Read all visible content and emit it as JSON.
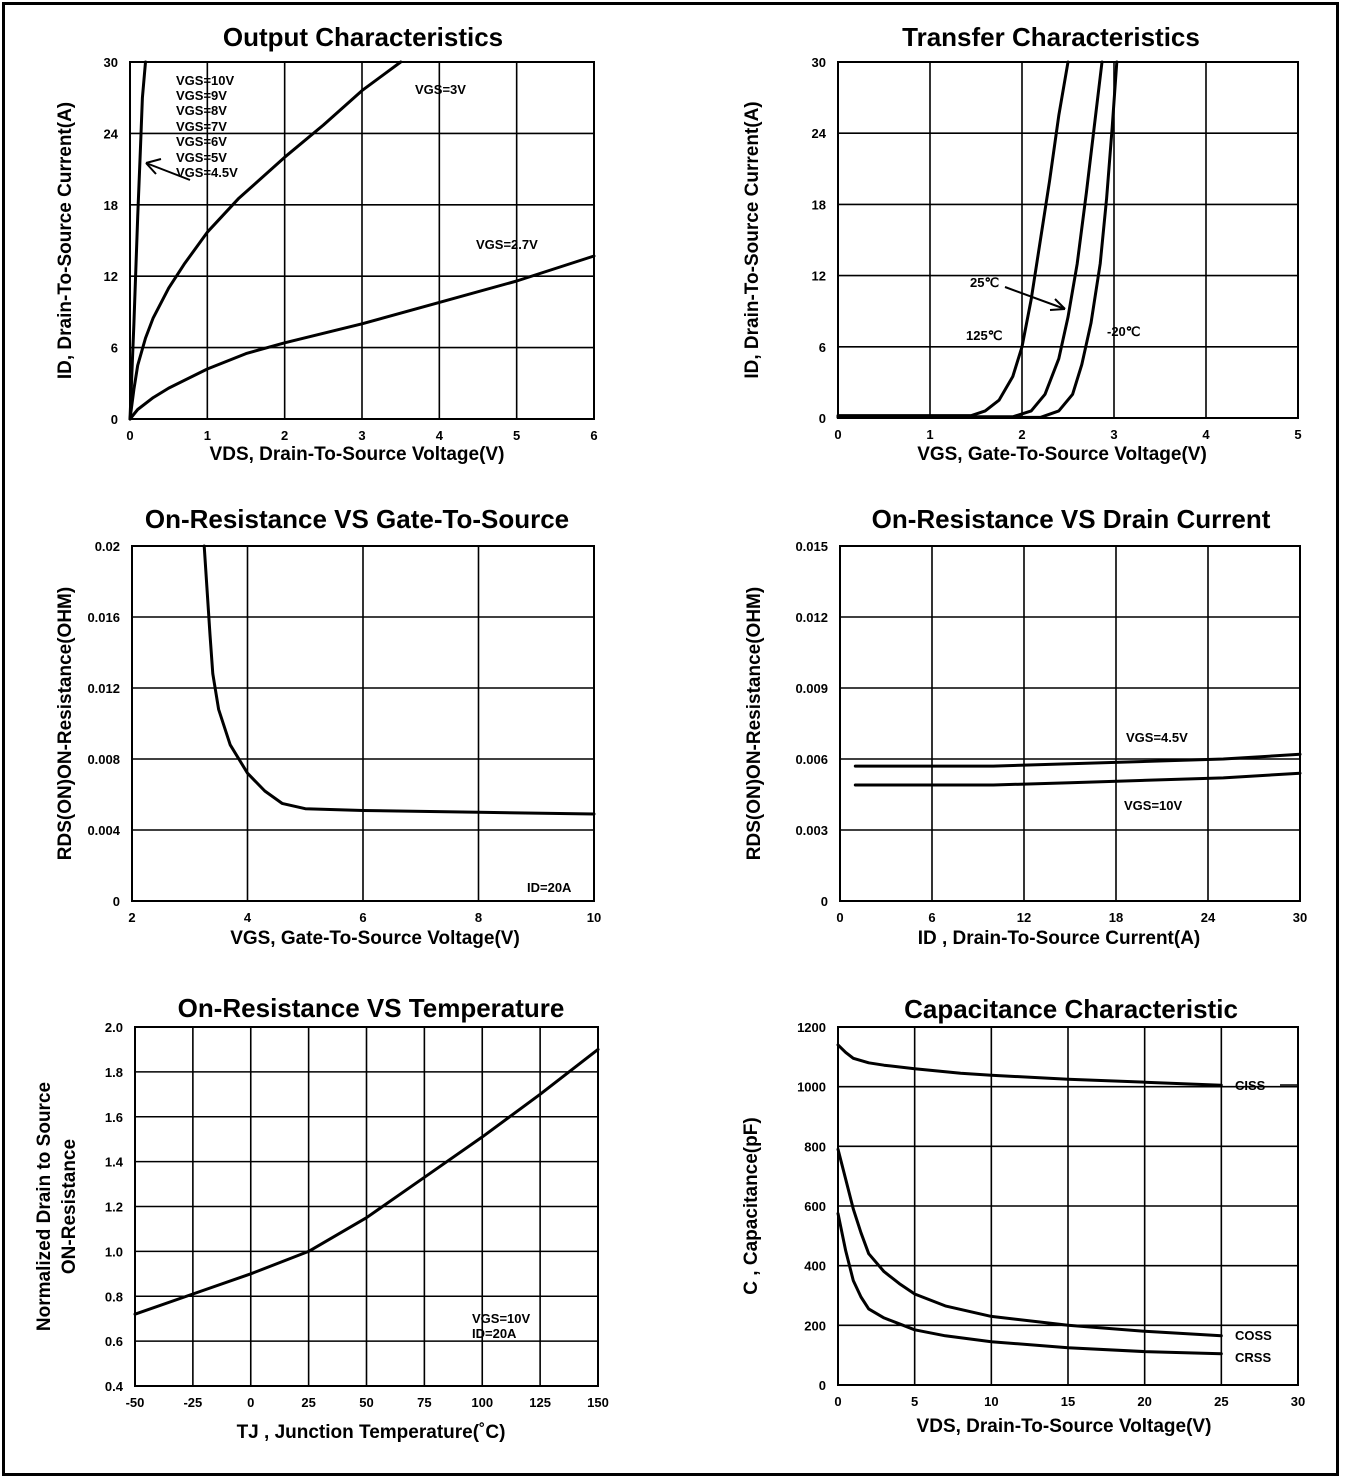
{
  "chart_data": [
    {
      "type": "line",
      "title": "Output Characteristics",
      "xlabel": "VDS, Drain-To-Source Voltage(V)",
      "ylabel": "ID, Drain-To-Source Current(A)",
      "xlim": [
        0,
        6
      ],
      "ylim": [
        0,
        30
      ],
      "xticks": [
        "0",
        "1",
        "2",
        "3",
        "4",
        "5",
        "6"
      ],
      "yticks": [
        "0",
        "6",
        "12",
        "18",
        "24",
        "30"
      ],
      "grid": true,
      "series": [
        {
          "name": "VGS=10V...4.5V",
          "x": [
            0,
            0.05,
            0.1,
            0.13,
            0.16,
            0.2
          ],
          "y": [
            0,
            8,
            17,
            22,
            27,
            30
          ]
        },
        {
          "name": "VGS=3V",
          "x": [
            0,
            0.05,
            0.1,
            0.2,
            0.3,
            0.5,
            0.7,
            1.0,
            1.4,
            2.0,
            2.5,
            3.0,
            3.5
          ],
          "y": [
            0,
            2.5,
            4.5,
            6.8,
            8.5,
            11,
            13,
            15.7,
            18.5,
            22,
            24.7,
            27.6,
            30
          ]
        },
        {
          "name": "VGS=2.7V",
          "x": [
            0,
            0.1,
            0.3,
            0.5,
            1.0,
            1.5,
            2.0,
            3.0,
            4.0,
            5.0,
            6.0
          ],
          "y": [
            0,
            0.8,
            1.8,
            2.6,
            4.2,
            5.5,
            6.4,
            8.0,
            9.8,
            11.6,
            13.7
          ]
        }
      ],
      "annotations": [
        "VGS=10V",
        "VGS=9V",
        "VGS=8V",
        "VGS=7V",
        "VGS=6V",
        "VGS=5V",
        "VGS=4.5V",
        "VGS=3V",
        "VGS=2.7V"
      ]
    },
    {
      "type": "line",
      "title": "Transfer Characteristics",
      "xlabel": "VGS, Gate-To-Source Voltage(V)",
      "ylabel": "ID, Drain-To-Source Current(A)",
      "xlim": [
        0,
        5
      ],
      "ylim": [
        0,
        30
      ],
      "xticks": [
        "0",
        "1",
        "2",
        "3",
        "4",
        "5"
      ],
      "yticks": [
        "0",
        "6",
        "12",
        "18",
        "24",
        "30"
      ],
      "grid": true,
      "series": [
        {
          "name": "125℃",
          "x": [
            0,
            1.45,
            1.6,
            1.75,
            1.9,
            2.0,
            2.1,
            2.2,
            2.3,
            2.4,
            2.5
          ],
          "y": [
            0.2,
            0.2,
            0.6,
            1.5,
            3.5,
            6.0,
            10.0,
            15.0,
            20.0,
            25.5,
            30
          ]
        },
        {
          "name": "25℃",
          "x": [
            0,
            1.9,
            2.1,
            2.25,
            2.4,
            2.5,
            2.6,
            2.7,
            2.8,
            2.87
          ],
          "y": [
            0.1,
            0.1,
            0.6,
            2.0,
            5.0,
            8.5,
            13.0,
            19.0,
            25.5,
            30
          ]
        },
        {
          "name": "-20℃",
          "x": [
            0,
            2.2,
            2.4,
            2.55,
            2.65,
            2.75,
            2.85,
            2.92,
            2.98,
            3.03
          ],
          "y": [
            0.05,
            0.05,
            0.6,
            2.0,
            4.5,
            8.0,
            13.0,
            18.5,
            24.5,
            30
          ]
        }
      ],
      "annotations": [
        "25℃",
        "125℃",
        "-20℃"
      ]
    },
    {
      "type": "line",
      "title": "On-Resistance VS Gate-To-Source",
      "xlabel": "VGS, Gate-To-Source Voltage(V)",
      "ylabel": "RDS(ON)ON-Resistance(OHM)",
      "xlim": [
        2,
        10
      ],
      "ylim": [
        0,
        0.02
      ],
      "xticks": [
        "2",
        "4",
        "6",
        "8",
        "10"
      ],
      "yticks": [
        "0",
        "0.004",
        "0.008",
        "0.012",
        "0.016",
        "0.02"
      ],
      "grid": true,
      "series": [
        {
          "name": "ID=20A",
          "x": [
            3.25,
            3.3,
            3.35,
            3.4,
            3.5,
            3.7,
            4.0,
            4.3,
            4.6,
            5.0,
            6.0,
            8.0,
            10.0
          ],
          "y": [
            0.02,
            0.0175,
            0.015,
            0.0128,
            0.0108,
            0.0088,
            0.0072,
            0.0062,
            0.0055,
            0.0052,
            0.0051,
            0.005,
            0.0049
          ]
        }
      ],
      "annotations": [
        "ID=20A"
      ]
    },
    {
      "type": "line",
      "title": "On-Resistance VS Drain Current",
      "xlabel": "ID , Drain-To-Source Current(A)",
      "ylabel": "RDS(ON)ON-Resistance(OHM)",
      "xlim": [
        0,
        30
      ],
      "ylim": [
        0,
        0.015
      ],
      "xticks": [
        "0",
        "6",
        "12",
        "18",
        "24",
        "30"
      ],
      "yticks": [
        "0",
        "0.003",
        "0.006",
        "0.009",
        "0.012",
        "0.015"
      ],
      "grid": true,
      "series": [
        {
          "name": "VGS=4.5V",
          "x": [
            1,
            5,
            10,
            15,
            20,
            25,
            30
          ],
          "y": [
            0.0057,
            0.0057,
            0.0057,
            0.0058,
            0.0059,
            0.006,
            0.0062
          ]
        },
        {
          "name": "VGS=10V",
          "x": [
            1,
            5,
            10,
            15,
            20,
            25,
            30
          ],
          "y": [
            0.0049,
            0.0049,
            0.0049,
            0.005,
            0.0051,
            0.0052,
            0.0054
          ]
        }
      ],
      "annotations": [
        "VGS=4.5V",
        "VGS=10V"
      ]
    },
    {
      "type": "line",
      "title": "On-Resistance VS Temperature",
      "xlabel": "TJ , Junction Temperature(˚C)",
      "ylabel": [
        "Normalized Drain to Source",
        "ON-Resistance"
      ],
      "xlim": [
        -50,
        150
      ],
      "ylim": [
        0.4,
        2.0
      ],
      "xticks": [
        "-50",
        "-25",
        "0",
        "25",
        "50",
        "75",
        "100",
        "125",
        "150"
      ],
      "yticks": [
        "0.4",
        "0.6",
        "0.8",
        "1.0",
        "1.2",
        "1.4",
        "1.6",
        "1.8",
        "2.0"
      ],
      "grid": true,
      "series": [
        {
          "name": "VGS=10V ID=20A",
          "x": [
            -50,
            -25,
            0,
            25,
            50,
            75,
            100,
            125,
            150
          ],
          "y": [
            0.72,
            0.81,
            0.9,
            1.0,
            1.15,
            1.33,
            1.51,
            1.7,
            1.9
          ]
        }
      ],
      "annotations": [
        "VGS=10V",
        "ID=20A"
      ]
    },
    {
      "type": "line",
      "title": "Capacitance Characteristic",
      "xlabel": "VDS, Drain-To-Source Voltage(V)",
      "ylabel": "C , Capacitance(pF)",
      "xlim": [
        0,
        30
      ],
      "ylim": [
        0,
        1200
      ],
      "xticks": [
        "0",
        "5",
        "10",
        "15",
        "20",
        "25",
        "30"
      ],
      "yticks": [
        "0",
        "200",
        "400",
        "600",
        "800",
        "1000",
        "1200"
      ],
      "grid": true,
      "series": [
        {
          "name": "CISS",
          "x": [
            0,
            0.5,
            1,
            2,
            3,
            5,
            8,
            10,
            15,
            20,
            25
          ],
          "y": [
            1140,
            1115,
            1095,
            1080,
            1072,
            1060,
            1045,
            1038,
            1025,
            1015,
            1005
          ]
        },
        {
          "name": "COSS",
          "x": [
            0,
            0.5,
            1,
            1.5,
            2,
            3,
            4,
            5,
            7,
            10,
            15,
            20,
            25
          ],
          "y": [
            790,
            690,
            590,
            510,
            440,
            380,
            340,
            305,
            265,
            230,
            200,
            180,
            165
          ]
        },
        {
          "name": "CRSS",
          "x": [
            0,
            0.5,
            1,
            1.5,
            2,
            3,
            4,
            5,
            7,
            10,
            15,
            20,
            25
          ],
          "y": [
            575,
            450,
            350,
            295,
            255,
            225,
            205,
            185,
            165,
            145,
            125,
            112,
            105
          ]
        }
      ],
      "annotations": [
        "CISS",
        "COSS",
        "CRSS"
      ]
    }
  ]
}
